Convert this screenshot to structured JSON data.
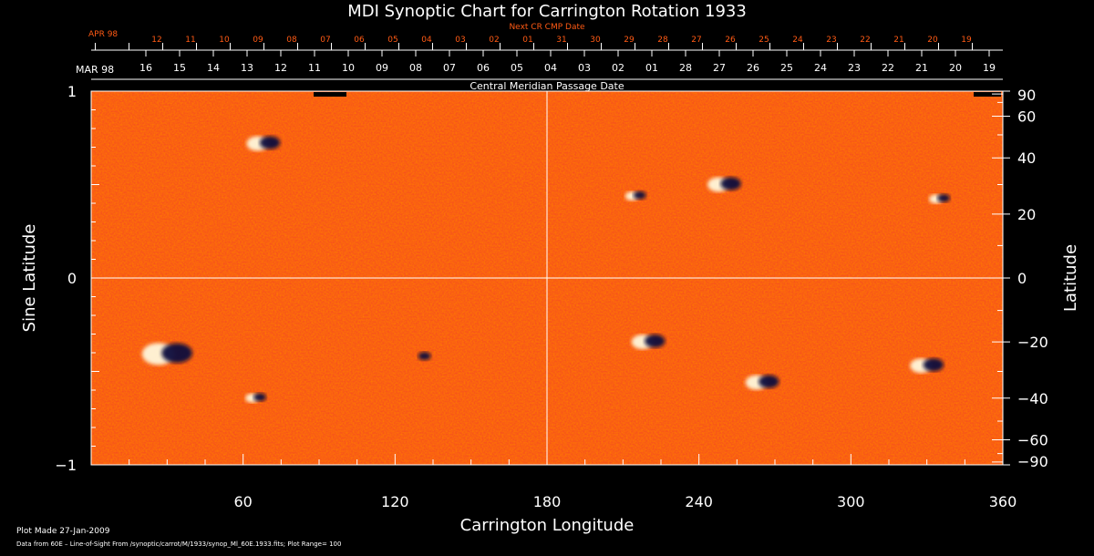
{
  "chart_data": {
    "type": "heatmap",
    "title": "MDI Synoptic Chart for Carrington Rotation 1933",
    "xlabel": "Carrington Longitude",
    "ylabel_left": "Sine Latitude",
    "ylabel_right": "Latitude",
    "xlim": [
      0,
      360
    ],
    "ylim": [
      -1,
      1
    ],
    "x_ticks": [
      60,
      120,
      180,
      240,
      300,
      360
    ],
    "y_ticks_left": [
      {
        "v": 1,
        "label": "1"
      },
      {
        "v": 0,
        "label": "0"
      },
      {
        "v": -1,
        "label": "−1"
      }
    ],
    "y_ticks_right": [
      {
        "lat": 90,
        "label": "90"
      },
      {
        "lat": 60,
        "label": "60"
      },
      {
        "lat": 40,
        "label": "40"
      },
      {
        "lat": 20,
        "label": "20"
      },
      {
        "lat": 0,
        "label": "0"
      },
      {
        "lat": -20,
        "label": "−20"
      },
      {
        "lat": -40,
        "label": "−40"
      },
      {
        "lat": -60,
        "label": "−60"
      },
      {
        "lat": -90,
        "label": "−90"
      }
    ],
    "cmp_axis": {
      "label": "Central Meridian Passage Date",
      "month_label": "MAR 98",
      "dates": [
        "16",
        "15",
        "14",
        "13",
        "12",
        "11",
        "10",
        "09",
        "08",
        "07",
        "06",
        "05",
        "04",
        "03",
        "02",
        "01",
        "28",
        "27",
        "26",
        "25",
        "24",
        "23",
        "22",
        "21",
        "20",
        "19"
      ]
    },
    "next_cr_axis": {
      "label": "Next CR CMP Date",
      "month_label": "APR 98",
      "dates": [
        "12",
        "11",
        "10",
        "09",
        "08",
        "07",
        "06",
        "05",
        "04",
        "03",
        "02",
        "01",
        "31",
        "30",
        "29",
        "28",
        "27",
        "26",
        "25",
        "24",
        "23",
        "22",
        "21",
        "20",
        "19"
      ]
    },
    "colors": {
      "background": "#000000",
      "field_base": "#ff5a14",
      "positive_polarity": "#ffffe6",
      "negative_polarity": "#0a0a3c",
      "next_cr_text": "#ff5a14",
      "text": "#ffffff"
    },
    "features": [
      {
        "lon": 68,
        "lat": 46,
        "polarity": "mixed",
        "size": "medium"
      },
      {
        "lon": 30,
        "lat": -24,
        "polarity": "mixed",
        "size": "large"
      },
      {
        "lon": 65,
        "lat": -40,
        "polarity": "mixed",
        "size": "small"
      },
      {
        "lon": 130,
        "lat": -25,
        "polarity": "negative",
        "size": "small"
      },
      {
        "lon": 215,
        "lat": 26,
        "polarity": "mixed",
        "size": "small"
      },
      {
        "lon": 250,
        "lat": 30,
        "polarity": "mixed",
        "size": "medium"
      },
      {
        "lon": 335,
        "lat": 25,
        "polarity": "mixed",
        "size": "small"
      },
      {
        "lon": 220,
        "lat": -20,
        "polarity": "mixed",
        "size": "medium"
      },
      {
        "lon": 265,
        "lat": -34,
        "polarity": "mixed",
        "size": "medium"
      },
      {
        "lon": 330,
        "lat": -28,
        "polarity": "mixed",
        "size": "medium"
      }
    ]
  },
  "footer": {
    "plot_made": "Plot Made 27-Jan-2009",
    "source": "Data from 60E – Line-of-Sight From /synoptic/carrot/M/1933/synop_Ml_60E.1933.fits; Plot Range= 100"
  }
}
